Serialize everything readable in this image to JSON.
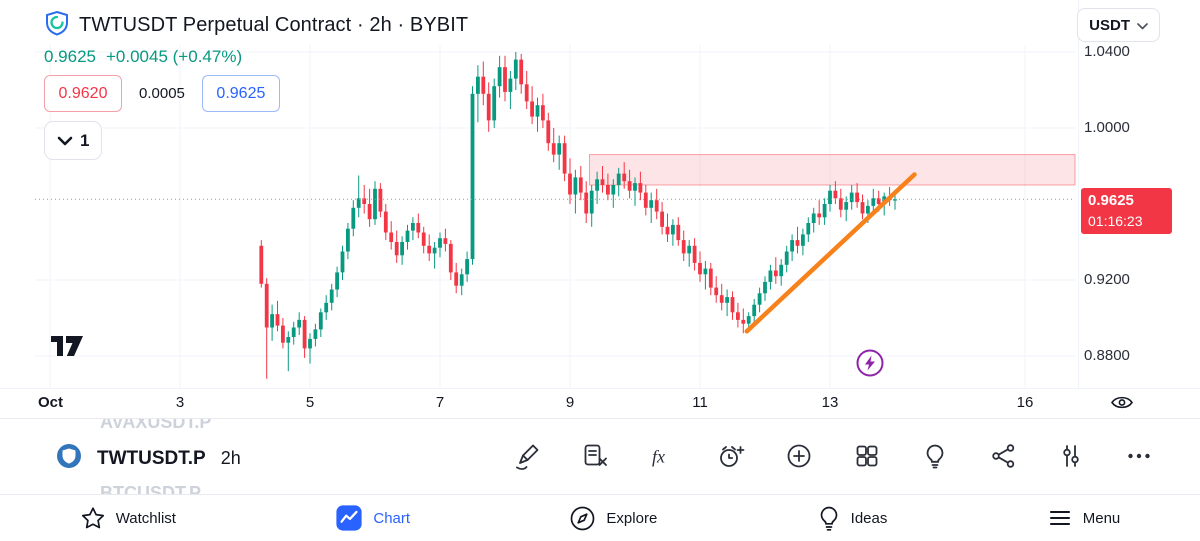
{
  "header": {
    "symbol_title": "TWTUSDT Perpetual Contract · 2h · BYBIT",
    "last_price": "0.9625",
    "change": "+0.0045 (+0.47%)",
    "sell_price": "0.9620",
    "spread": "0.0005",
    "buy_price": "0.9625",
    "quantity": "1",
    "currency": "USDT"
  },
  "chart_data": {
    "type": "candlestick",
    "symbol": "TWTUSDT Perpetual",
    "exchange": "BYBIT",
    "interval": "2h",
    "title": "TWTUSDT Perpetual Contract · 2h · BYBIT",
    "last_price_label": "0.9625",
    "countdown": "01:16:23",
    "price_line": 0.9625,
    "colors": {
      "up": "#089981",
      "down": "#f23645",
      "grid": "#f0f3fa",
      "dotted": "#9598a1"
    },
    "y_axis_ticks": [
      {
        "label": "1.0400",
        "value": 1.04
      },
      {
        "label": "1.0000",
        "value": 1.0
      },
      {
        "label": "0.9200",
        "value": 0.92
      },
      {
        "label": "0.8800",
        "value": 0.88
      }
    ],
    "x_axis_ticks": [
      {
        "label": "Oct",
        "day": 1,
        "bold": true
      },
      {
        "label": "3",
        "day": 3
      },
      {
        "label": "5",
        "day": 5
      },
      {
        "label": "7",
        "day": 7
      },
      {
        "label": "9",
        "day": 9
      },
      {
        "label": "11",
        "day": 11
      },
      {
        "label": "13",
        "day": 13
      },
      {
        "label": "16",
        "day": 16
      }
    ],
    "zone": {
      "from_day": 9.3,
      "price_top": 0.986,
      "price_bottom": 0.97,
      "color": "#f23645"
    },
    "trendline": {
      "from": {
        "day": 11.72,
        "price": 0.893
      },
      "to": {
        "day": 14.3,
        "price": 0.9755
      },
      "color": "#f7821b"
    },
    "start_day": 4.25,
    "step_days": 0.083333,
    "candles": [
      [
        0.938,
        0.941,
        0.916,
        0.918
      ],
      [
        0.918,
        0.921,
        0.868,
        0.895
      ],
      [
        0.895,
        0.907,
        0.888,
        0.902
      ],
      [
        0.902,
        0.909,
        0.893,
        0.896
      ],
      [
        0.896,
        0.9,
        0.884,
        0.887
      ],
      [
        0.887,
        0.893,
        0.872,
        0.89
      ],
      [
        0.89,
        0.898,
        0.886,
        0.895
      ],
      [
        0.895,
        0.903,
        0.891,
        0.899
      ],
      [
        0.899,
        0.901,
        0.879,
        0.884
      ],
      [
        0.884,
        0.892,
        0.876,
        0.889
      ],
      [
        0.889,
        0.897,
        0.885,
        0.894
      ],
      [
        0.894,
        0.905,
        0.89,
        0.903
      ],
      [
        0.903,
        0.912,
        0.899,
        0.908
      ],
      [
        0.908,
        0.918,
        0.904,
        0.915
      ],
      [
        0.915,
        0.927,
        0.911,
        0.924
      ],
      [
        0.924,
        0.938,
        0.92,
        0.935
      ],
      [
        0.935,
        0.95,
        0.931,
        0.947
      ],
      [
        0.947,
        0.962,
        0.943,
        0.958
      ],
      [
        0.958,
        0.975,
        0.953,
        0.963
      ],
      [
        0.963,
        0.97,
        0.955,
        0.96
      ],
      [
        0.96,
        0.968,
        0.948,
        0.952
      ],
      [
        0.952,
        0.972,
        0.949,
        0.968
      ],
      [
        0.968,
        0.971,
        0.953,
        0.956
      ],
      [
        0.956,
        0.96,
        0.941,
        0.945
      ],
      [
        0.945,
        0.951,
        0.936,
        0.94
      ],
      [
        0.94,
        0.946,
        0.929,
        0.933
      ],
      [
        0.933,
        0.943,
        0.928,
        0.94
      ],
      [
        0.94,
        0.949,
        0.936,
        0.946
      ],
      [
        0.946,
        0.953,
        0.941,
        0.95
      ],
      [
        0.95,
        0.955,
        0.942,
        0.945
      ],
      [
        0.945,
        0.948,
        0.934,
        0.938
      ],
      [
        0.938,
        0.944,
        0.93,
        0.934
      ],
      [
        0.934,
        0.94,
        0.926,
        0.937
      ],
      [
        0.937,
        0.945,
        0.932,
        0.942
      ],
      [
        0.942,
        0.947,
        0.935,
        0.939
      ],
      [
        0.939,
        0.941,
        0.92,
        0.924
      ],
      [
        0.924,
        0.929,
        0.913,
        0.917
      ],
      [
        0.917,
        0.926,
        0.912,
        0.923
      ],
      [
        0.923,
        0.935,
        0.919,
        0.931
      ],
      [
        0.931,
        1.022,
        0.928,
        1.018
      ],
      [
        1.018,
        1.033,
        1.003,
        1.027
      ],
      [
        1.027,
        1.035,
        1.012,
        1.018
      ],
      [
        1.018,
        1.024,
        0.998,
        1.004
      ],
      [
        1.004,
        1.026,
        1.0,
        1.022
      ],
      [
        1.022,
        1.038,
        1.016,
        1.032
      ],
      [
        1.032,
        1.038,
        1.014,
        1.019
      ],
      [
        1.019,
        1.03,
        1.01,
        1.026
      ],
      [
        1.026,
        1.04,
        1.02,
        1.036
      ],
      [
        1.036,
        1.039,
        1.018,
        1.023
      ],
      [
        1.023,
        1.03,
        1.01,
        1.014
      ],
      [
        1.014,
        1.022,
        1.002,
        1.006
      ],
      [
        1.006,
        1.016,
        0.998,
        1.012
      ],
      [
        1.012,
        1.018,
        1.0,
        1.004
      ],
      [
        1.004,
        1.008,
        0.988,
        0.992
      ],
      [
        0.992,
        1.0,
        0.982,
        0.986
      ],
      [
        0.986,
        0.996,
        0.978,
        0.992
      ],
      [
        0.992,
        0.996,
        0.972,
        0.976
      ],
      [
        0.976,
        0.984,
        0.96,
        0.965
      ],
      [
        0.965,
        0.978,
        0.955,
        0.974
      ],
      [
        0.974,
        0.98,
        0.962,
        0.966
      ],
      [
        0.966,
        0.972,
        0.95,
        0.955
      ],
      [
        0.955,
        0.97,
        0.948,
        0.967
      ],
      [
        0.967,
        0.977,
        0.96,
        0.973
      ],
      [
        0.973,
        0.98,
        0.966,
        0.97
      ],
      [
        0.97,
        0.976,
        0.962,
        0.965
      ],
      [
        0.965,
        0.973,
        0.958,
        0.97
      ],
      [
        0.97,
        0.979,
        0.964,
        0.976
      ],
      [
        0.976,
        0.982,
        0.968,
        0.972
      ],
      [
        0.972,
        0.978,
        0.963,
        0.967
      ],
      [
        0.967,
        0.974,
        0.959,
        0.971
      ],
      [
        0.971,
        0.977,
        0.962,
        0.966
      ],
      [
        0.966,
        0.97,
        0.954,
        0.958
      ],
      [
        0.958,
        0.966,
        0.95,
        0.962
      ],
      [
        0.962,
        0.968,
        0.952,
        0.956
      ],
      [
        0.956,
        0.961,
        0.944,
        0.948
      ],
      [
        0.948,
        0.955,
        0.94,
        0.944
      ],
      [
        0.944,
        0.952,
        0.938,
        0.949
      ],
      [
        0.949,
        0.953,
        0.938,
        0.941
      ],
      [
        0.941,
        0.946,
        0.93,
        0.934
      ],
      [
        0.934,
        0.941,
        0.927,
        0.938
      ],
      [
        0.938,
        0.942,
        0.925,
        0.929
      ],
      [
        0.929,
        0.935,
        0.919,
        0.923
      ],
      [
        0.923,
        0.93,
        0.915,
        0.926
      ],
      [
        0.926,
        0.929,
        0.912,
        0.916
      ],
      [
        0.916,
        0.922,
        0.908,
        0.912
      ],
      [
        0.912,
        0.918,
        0.904,
        0.908
      ],
      [
        0.908,
        0.915,
        0.901,
        0.911
      ],
      [
        0.911,
        0.914,
        0.899,
        0.903
      ],
      [
        0.903,
        0.908,
        0.895,
        0.899
      ],
      [
        0.899,
        0.905,
        0.892,
        0.897
      ],
      [
        0.897,
        0.903,
        0.894,
        0.901
      ],
      [
        0.901,
        0.91,
        0.897,
        0.907
      ],
      [
        0.907,
        0.916,
        0.903,
        0.913
      ],
      [
        0.913,
        0.922,
        0.909,
        0.919
      ],
      [
        0.919,
        0.928,
        0.915,
        0.925
      ],
      [
        0.925,
        0.932,
        0.918,
        0.922
      ],
      [
        0.922,
        0.931,
        0.917,
        0.928
      ],
      [
        0.928,
        0.938,
        0.924,
        0.935
      ],
      [
        0.935,
        0.944,
        0.93,
        0.941
      ],
      [
        0.941,
        0.948,
        0.934,
        0.938
      ],
      [
        0.938,
        0.947,
        0.933,
        0.944
      ],
      [
        0.944,
        0.953,
        0.94,
        0.95
      ],
      [
        0.95,
        0.958,
        0.945,
        0.955
      ],
      [
        0.955,
        0.962,
        0.949,
        0.953
      ],
      [
        0.953,
        0.963,
        0.949,
        0.96
      ],
      [
        0.96,
        0.97,
        0.956,
        0.967
      ],
      [
        0.967,
        0.972,
        0.96,
        0.963
      ],
      [
        0.963,
        0.968,
        0.953,
        0.957
      ],
      [
        0.957,
        0.964,
        0.951,
        0.961
      ],
      [
        0.961,
        0.97,
        0.957,
        0.966
      ],
      [
        0.966,
        0.971,
        0.958,
        0.961
      ],
      [
        0.961,
        0.965,
        0.952,
        0.955
      ],
      [
        0.955,
        0.962,
        0.95,
        0.959
      ],
      [
        0.959,
        0.968,
        0.955,
        0.963
      ],
      [
        0.963,
        0.967,
        0.956,
        0.96
      ],
      [
        0.96,
        0.966,
        0.954,
        0.964
      ],
      [
        0.964,
        0.969,
        0.959,
        0.962
      ],
      [
        0.962,
        0.966,
        0.957,
        0.9625
      ]
    ]
  },
  "toolbar": {
    "symbol_above": "AVAXUSDT.P",
    "active_symbol": "TWTUSDT.P",
    "interval": "2h",
    "symbol_below": "BTCUSDT.P",
    "icons": [
      "marker-pen-icon",
      "note-remove-icon",
      "function-fx-icon",
      "alarm-clock-plus-icon",
      "plus-circle-icon",
      "grid-icon",
      "lightbulb-icon",
      "share-nodes-icon",
      "sliders-icon",
      "ellipsis-icon"
    ]
  },
  "bottom_nav": {
    "items": [
      {
        "label": "Watchlist",
        "icon": "star-icon",
        "active": false
      },
      {
        "label": "Chart",
        "icon": "chart-icon",
        "active": true
      },
      {
        "label": "Explore",
        "icon": "compass-icon",
        "active": false
      },
      {
        "label": "Ideas",
        "icon": "bulb-icon",
        "active": false
      },
      {
        "label": "Menu",
        "icon": "menu-icon",
        "active": false
      }
    ]
  }
}
